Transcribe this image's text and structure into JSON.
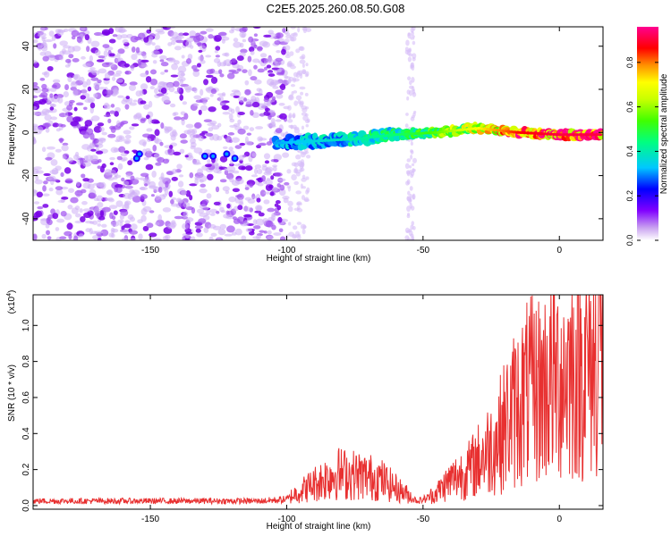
{
  "title": "C2E5.2025.260.08.50.G08",
  "chart_data": [
    {
      "type": "heatmap",
      "xlabel": "Height of straight line (km)",
      "ylabel": "Frequency (Hz)",
      "xlim": [
        -193,
        16
      ],
      "ylim": [
        -50,
        49
      ],
      "xticks": [
        -150,
        -100,
        -50,
        0
      ],
      "yticks": [
        -40,
        -20,
        0,
        20,
        40
      ],
      "colorbar": {
        "label": "Normalized spectral amplitude",
        "range": [
          0,
          0.96
        ],
        "ticks": [
          "0.0",
          "0.2",
          "0.4",
          "0.6",
          "0.8"
        ]
      },
      "signal_track": [
        {
          "x": -155,
          "y": -12,
          "level": 0.25
        },
        {
          "x": -130,
          "y": -11,
          "level": 0.25
        },
        {
          "x": -122,
          "y": -11,
          "level": 0.28
        },
        {
          "x": -105,
          "y": -5,
          "level": 0.3
        },
        {
          "x": -90,
          "y": -4,
          "level": 0.35
        },
        {
          "x": -75,
          "y": -3,
          "level": 0.4
        },
        {
          "x": -60,
          "y": -1,
          "level": 0.45
        },
        {
          "x": -45,
          "y": 0,
          "level": 0.55
        },
        {
          "x": -30,
          "y": 2,
          "level": 0.7
        },
        {
          "x": -15,
          "y": 0,
          "level": 0.85
        },
        {
          "x": 0,
          "y": -1,
          "level": 0.9
        },
        {
          "x": 15,
          "y": -1,
          "level": 0.9
        }
      ]
    },
    {
      "type": "line",
      "xlabel": "Height of straight line (km)",
      "ylabel": "SNR (10 * v/v)",
      "yscale_label": "(x10",
      "yscale_exp": "4",
      "yscale_close": ")",
      "xlim": [
        -193,
        16
      ],
      "ylim": [
        -0.02,
        1.17
      ],
      "xticks": [
        -150,
        -100,
        -50,
        0
      ],
      "yticks": [
        "0.0",
        "0.2",
        "0.4",
        "0.6",
        "0.8",
        "1.0"
      ],
      "envelope": [
        {
          "x": -193,
          "y": 0.03
        },
        {
          "x": -110,
          "y": 0.03
        },
        {
          "x": -100,
          "y": 0.04
        },
        {
          "x": -90,
          "y": 0.12
        },
        {
          "x": -82,
          "y": 0.18
        },
        {
          "x": -75,
          "y": 0.17
        },
        {
          "x": -66,
          "y": 0.15
        },
        {
          "x": -58,
          "y": 0.08
        },
        {
          "x": -52,
          "y": 0.03
        },
        {
          "x": -46,
          "y": 0.06
        },
        {
          "x": -40,
          "y": 0.14
        },
        {
          "x": -33,
          "y": 0.2
        },
        {
          "x": -28,
          "y": 0.28
        },
        {
          "x": -23,
          "y": 0.36
        },
        {
          "x": -18,
          "y": 0.5
        },
        {
          "x": -12,
          "y": 0.62
        },
        {
          "x": -6,
          "y": 0.66
        },
        {
          "x": 0,
          "y": 0.72
        },
        {
          "x": 6,
          "y": 0.76
        },
        {
          "x": 12,
          "y": 0.78
        },
        {
          "x": 16,
          "y": 0.82
        }
      ],
      "peak": {
        "x": 14.5,
        "y": 1.17
      },
      "color": "#e83030"
    }
  ]
}
